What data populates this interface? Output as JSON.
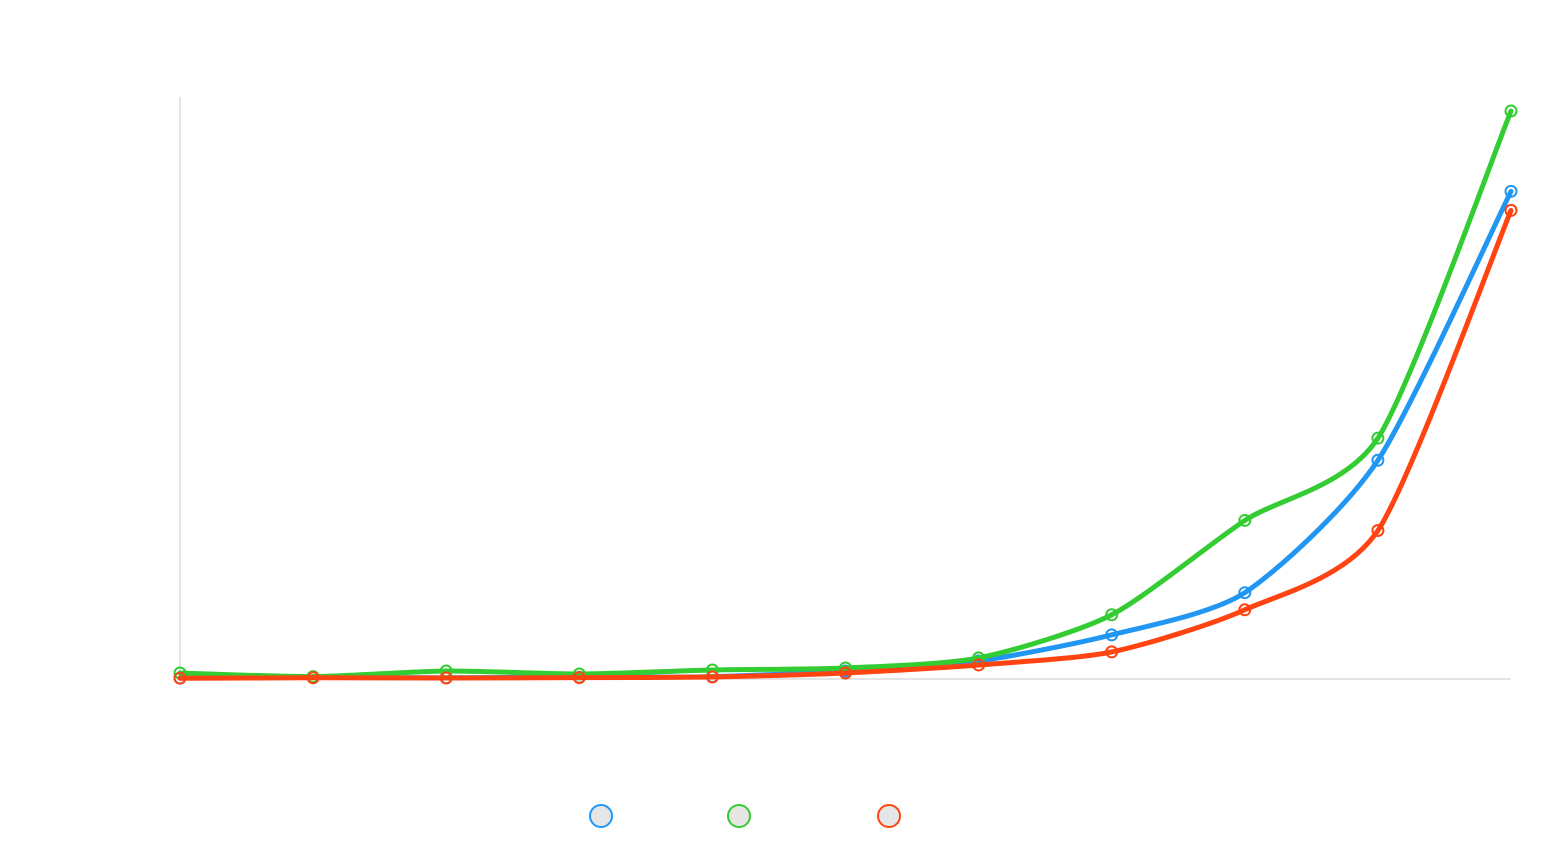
{
  "chart_data": {
    "type": "line",
    "title": "",
    "xlabel": "",
    "ylabel": "",
    "x": [
      0,
      1,
      2,
      3,
      4,
      5,
      6,
      7,
      8,
      9,
      10
    ],
    "ylim": [
      0,
      290
    ],
    "grid": false,
    "legend_position": "bottom-center",
    "series": [
      {
        "color": "#2196f3",
        "values": [
          0.5,
          0.8,
          0.6,
          0.9,
          1.2,
          4,
          9,
          22,
          43,
          109,
          243
        ]
      },
      {
        "color": "#33cc33",
        "values": [
          3,
          1.2,
          4,
          2.5,
          4.5,
          5.5,
          10.5,
          32,
          79,
          120,
          283
        ]
      },
      {
        "color": "#ff4411",
        "values": [
          0.4,
          0.6,
          0.5,
          0.7,
          1,
          3,
          7,
          13.5,
          34.5,
          74,
          233.5
        ]
      }
    ]
  }
}
